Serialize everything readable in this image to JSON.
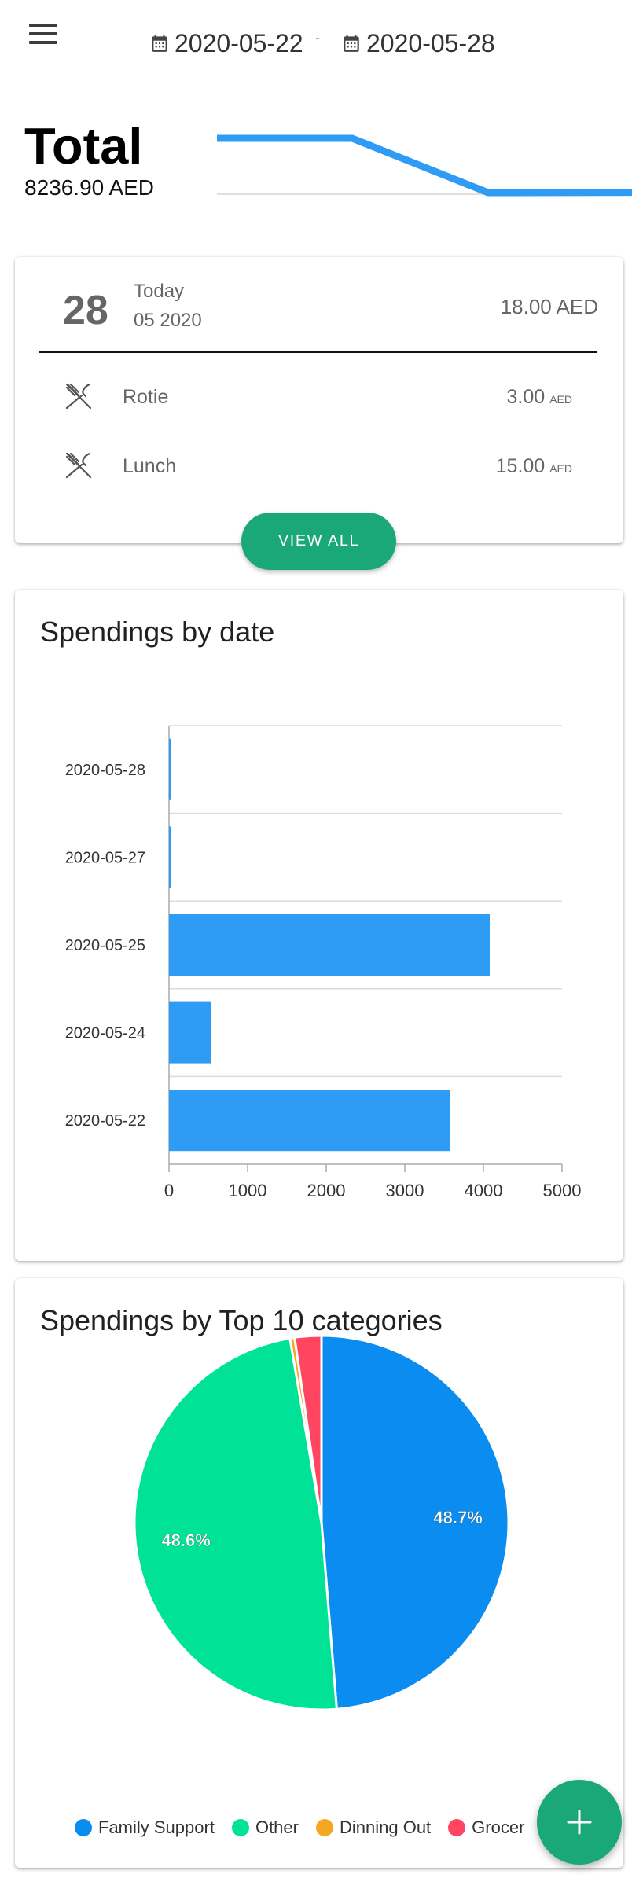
{
  "header": {
    "start_date": "2020-05-22",
    "end_date": "2020-05-28",
    "separator": "-"
  },
  "total": {
    "title": "Total",
    "amount": "8236.90 AED",
    "trend": [
      3580,
      3580,
      0,
      20
    ]
  },
  "today": {
    "day": "28",
    "label": "Today",
    "month_year": "05 2020",
    "total": "18.00 AED",
    "items": [
      {
        "name": "Rotie",
        "amount": "3.00",
        "currency": "AED",
        "icon": "cutlery-icon"
      },
      {
        "name": "Lunch",
        "amount": "15.00",
        "currency": "AED",
        "icon": "cutlery-icon"
      }
    ],
    "view_all_label": "VIEW ALL"
  },
  "spendings_by_date": {
    "title": "Spendings by date"
  },
  "spendings_by_category": {
    "title": "Spendings by Top 10 categories"
  },
  "fab_icon": "plus-icon",
  "colors": {
    "accent": "#1aa879",
    "bar": "#2e9cf5",
    "family_support": "#0a8cf0",
    "other": "#00e396",
    "dinning_out": "#f5a623",
    "groceries": "#ff4560"
  },
  "chart_data": [
    {
      "type": "bar",
      "orientation": "horizontal",
      "title": "Spendings by date",
      "categories": [
        "2020-05-28",
        "2020-05-27",
        "2020-05-25",
        "2020-05-24",
        "2020-05-22"
      ],
      "values": [
        18,
        15,
        4080,
        540,
        3580
      ],
      "xlim": [
        0,
        5000
      ],
      "xticks": [
        "0",
        "1000",
        "2000",
        "3000",
        "4000",
        "5000"
      ],
      "grid": true
    },
    {
      "type": "pie",
      "title": "Spendings by Top 10 categories",
      "labels": [
        "Family Support",
        "Other",
        "Dinning Out",
        "Groceries"
      ],
      "legend_labels": [
        "Family Support",
        "Other",
        "Dinning Out",
        "Grocer"
      ],
      "values": [
        48.7,
        48.6,
        0.4,
        2.3
      ],
      "data_labels": [
        "48.7%",
        "48.6%",
        "",
        ""
      ],
      "legend": "bottom"
    }
  ]
}
